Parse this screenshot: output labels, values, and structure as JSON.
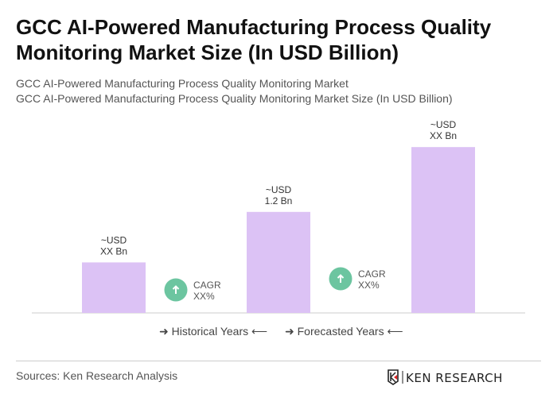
{
  "title": "GCC AI-Powered Manufacturing Process Quality Monitoring Market Size (In USD Billion)",
  "subtitle1": "GCC AI-Powered Manufacturing Process Quality Monitoring Market",
  "subtitle2": "GCC AI-Powered Manufacturing Process Quality Monitoring Market Size (In USD Billion)",
  "chart_data": {
    "type": "bar",
    "categories": [
      "",
      "",
      ""
    ],
    "values": [
      0.6,
      1.2,
      1.97
    ],
    "data_labels": [
      [
        "~USD",
        "XX Bn"
      ],
      [
        "~USD",
        "1.2 Bn"
      ],
      [
        "~USD",
        "XX Bn"
      ]
    ],
    "cagr_labels": [
      [
        "CAGR",
        "XX%"
      ],
      [
        "CAGR",
        "XX%"
      ]
    ],
    "bar_color": "#dcc2f5",
    "cagr_color": "#6cc5a0",
    "grid": false
  },
  "legend": {
    "historical": "Historical Years",
    "forecasted": "Forecasted Years"
  },
  "sources": "Sources: Ken Research Analysis",
  "logo_text": "KEN RESEARCH"
}
